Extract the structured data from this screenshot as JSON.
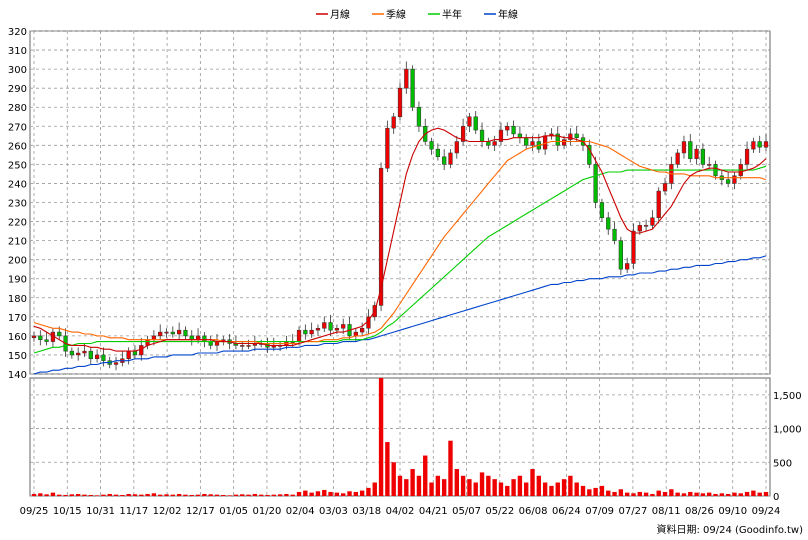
{
  "chart_data": {
    "type": "candlestick",
    "legend": [
      {
        "label": "月線",
        "color": "#cc0000"
      },
      {
        "label": "季線",
        "color": "#ff6600"
      },
      {
        "label": "半年",
        "color": "#00cc00"
      },
      {
        "label": "年線",
        "color": "#0044cc"
      }
    ],
    "price_axis": {
      "min": 140,
      "max": 320,
      "ticks": [
        140,
        150,
        160,
        170,
        180,
        190,
        200,
        210,
        220,
        230,
        240,
        250,
        260,
        270,
        280,
        290,
        300,
        310,
        320
      ]
    },
    "volume_axis": {
      "min": 0,
      "max": 1750,
      "ticks": [
        0,
        500,
        1000,
        1500
      ],
      "tick_labels": [
        "0",
        "500",
        "1,000",
        "1,500"
      ]
    },
    "x_labels": [
      "09/25",
      "10/15",
      "10/31",
      "11/17",
      "12/02",
      "12/17",
      "01/05",
      "01/20",
      "02/04",
      "03/03",
      "03/18",
      "04/02",
      "04/21",
      "05/07",
      "05/22",
      "06/08",
      "06/24",
      "07/09",
      "07/27",
      "08/11",
      "08/26",
      "09/10",
      "09/24"
    ],
    "footer": "資料日期: 09/24  (Goodinfo.tw)",
    "colors": {
      "up": "#ee0000",
      "down": "#00bb00",
      "grid": "#999999",
      "volume": "#ee0000"
    },
    "close": [
      160,
      158,
      157,
      162,
      160,
      152,
      150,
      151,
      152,
      148,
      150,
      147,
      145,
      146,
      148,
      152,
      150,
      155,
      158,
      160,
      162,
      162,
      161,
      163,
      160,
      158,
      160,
      157,
      155,
      157,
      158,
      156,
      155,
      155,
      155,
      156,
      156,
      154,
      155,
      155,
      157,
      157,
      163,
      161,
      163,
      164,
      167,
      163,
      164,
      166,
      160,
      162,
      164,
      170,
      176,
      248,
      269,
      275,
      290,
      300,
      280,
      270,
      262,
      258,
      254,
      250,
      256,
      262,
      270,
      275,
      268,
      262,
      260,
      262,
      268,
      270,
      266,
      264,
      260,
      262,
      258,
      265,
      266,
      260,
      263,
      266,
      264,
      260,
      250,
      230,
      222,
      216,
      210,
      195,
      198,
      215,
      218,
      218,
      222,
      236,
      240,
      250,
      256,
      262,
      253,
      258,
      250,
      250,
      244,
      242,
      240,
      244,
      250,
      258,
      262,
      259,
      262
    ],
    "ma_month": [
      165,
      164,
      162,
      160,
      158,
      156,
      155,
      155,
      155,
      154,
      154,
      153,
      153,
      152,
      152,
      152,
      152,
      153,
      155,
      156,
      157,
      158,
      158,
      158,
      158,
      158,
      158,
      158,
      158,
      157,
      157,
      157,
      156,
      156,
      156,
      156,
      156,
      155,
      155,
      155,
      155,
      155,
      156,
      157,
      158,
      159,
      160,
      161,
      162,
      162,
      163,
      164,
      165,
      168,
      173,
      185,
      200,
      215,
      230,
      245,
      255,
      262,
      266,
      268,
      269,
      268,
      266,
      264,
      263,
      262,
      262,
      262,
      262,
      263,
      263,
      263,
      264,
      264,
      264,
      264,
      264,
      265,
      265,
      265,
      264,
      264,
      263,
      262,
      258,
      252,
      246,
      238,
      230,
      222,
      216,
      214,
      214,
      215,
      216,
      220,
      224,
      228,
      234,
      240,
      244,
      246,
      247,
      248,
      248,
      247,
      246,
      246,
      246,
      247,
      248,
      250,
      253
    ],
    "ma_quarter": [
      167,
      166,
      165,
      164,
      164,
      163,
      162,
      162,
      161,
      161,
      160,
      160,
      159,
      159,
      159,
      158,
      158,
      158,
      158,
      158,
      158,
      158,
      158,
      158,
      158,
      158,
      158,
      158,
      158,
      158,
      157,
      157,
      157,
      157,
      157,
      157,
      156,
      156,
      156,
      156,
      156,
      156,
      156,
      157,
      157,
      157,
      158,
      158,
      158,
      159,
      159,
      160,
      160,
      161,
      162,
      164,
      168,
      172,
      177,
      182,
      187,
      192,
      197,
      202,
      207,
      212,
      216,
      220,
      224,
      228,
      232,
      236,
      240,
      244,
      248,
      252,
      254,
      256,
      258,
      259,
      260,
      261,
      262,
      262,
      262,
      262,
      262,
      262,
      262,
      261,
      260,
      259,
      257,
      255,
      253,
      251,
      249,
      248,
      247,
      246,
      246,
      245,
      245,
      245,
      244,
      244,
      244,
      244,
      243,
      243,
      243,
      243,
      243,
      243,
      243,
      243,
      242
    ],
    "ma_half": [
      151,
      152,
      153,
      154,
      154,
      155,
      155,
      156,
      156,
      156,
      157,
      157,
      157,
      157,
      157,
      157,
      157,
      157,
      157,
      157,
      157,
      157,
      157,
      157,
      157,
      157,
      157,
      157,
      157,
      157,
      157,
      157,
      157,
      157,
      157,
      157,
      157,
      157,
      157,
      157,
      157,
      157,
      157,
      157,
      157,
      157,
      157,
      157,
      157,
      158,
      158,
      158,
      158,
      159,
      160,
      162,
      165,
      167,
      170,
      173,
      176,
      179,
      182,
      185,
      188,
      191,
      194,
      197,
      200,
      203,
      206,
      209,
      212,
      214,
      216,
      218,
      220,
      222,
      224,
      226,
      228,
      230,
      232,
      234,
      236,
      238,
      240,
      242,
      243,
      244,
      245,
      246,
      246,
      246,
      247,
      247,
      247,
      247,
      247,
      247,
      247,
      247,
      247,
      247,
      247,
      247,
      247,
      247,
      247,
      247,
      247,
      247,
      247,
      247,
      247,
      248,
      249
    ],
    "ma_year": [
      140,
      141,
      141,
      142,
      142,
      143,
      143,
      144,
      144,
      145,
      145,
      146,
      146,
      147,
      147,
      147,
      148,
      148,
      148,
      149,
      149,
      149,
      150,
      150,
      150,
      150,
      151,
      151,
      151,
      151,
      152,
      152,
      152,
      152,
      152,
      153,
      153,
      153,
      153,
      153,
      154,
      154,
      154,
      155,
      155,
      155,
      156,
      156,
      156,
      157,
      157,
      157,
      158,
      158,
      159,
      160,
      161,
      162,
      163,
      164,
      165,
      166,
      167,
      168,
      169,
      170,
      171,
      172,
      173,
      174,
      175,
      176,
      177,
      178,
      179,
      180,
      181,
      182,
      183,
      184,
      185,
      186,
      187,
      187,
      188,
      188,
      189,
      189,
      190,
      190,
      190,
      191,
      191,
      191,
      192,
      192,
      193,
      193,
      193,
      194,
      194,
      195,
      195,
      196,
      196,
      197,
      197,
      197,
      198,
      198,
      199,
      199,
      200,
      200,
      201,
      201,
      202
    ],
    "volume": [
      30,
      40,
      25,
      50,
      20,
      15,
      25,
      30,
      20,
      15,
      10,
      20,
      30,
      20,
      15,
      30,
      25,
      20,
      30,
      40,
      20,
      25,
      20,
      30,
      20,
      15,
      20,
      30,
      25,
      20,
      15,
      10,
      20,
      25,
      20,
      30,
      20,
      15,
      20,
      25,
      30,
      20,
      60,
      80,
      50,
      70,
      90,
      60,
      50,
      40,
      70,
      60,
      80,
      120,
      200,
      1750,
      800,
      500,
      300,
      250,
      400,
      300,
      600,
      200,
      300,
      250,
      820,
      400,
      300,
      250,
      200,
      350,
      300,
      250,
      200,
      150,
      250,
      300,
      200,
      400,
      300,
      200,
      150,
      200,
      250,
      300,
      200,
      150,
      100,
      120,
      150,
      80,
      60,
      100,
      50,
      40,
      60,
      50,
      30,
      80,
      60,
      100,
      50,
      40,
      60,
      50,
      40,
      50,
      30,
      40,
      30,
      50,
      40,
      60,
      80,
      50,
      60
    ]
  }
}
